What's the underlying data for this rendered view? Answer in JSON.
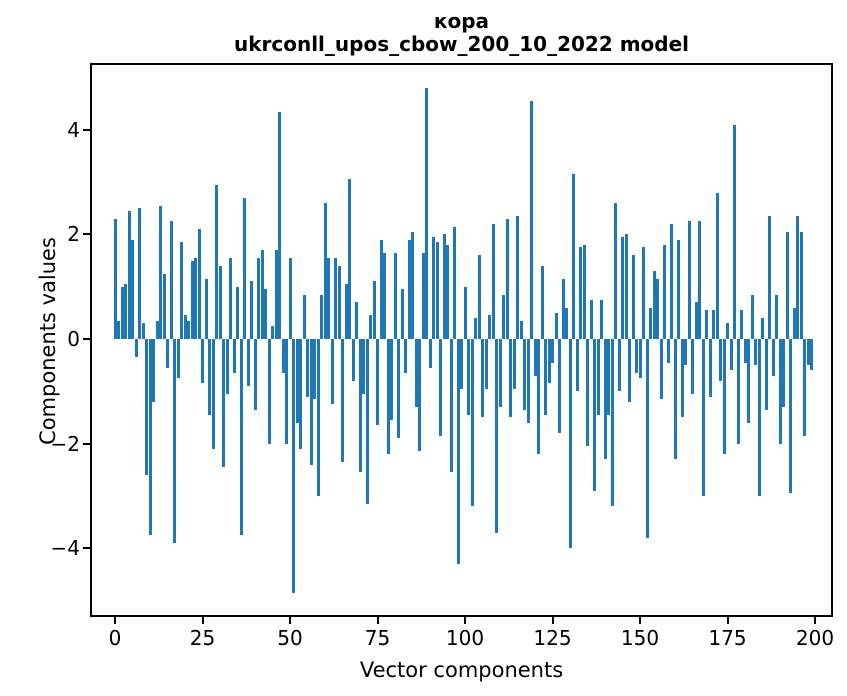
{
  "figure": {
    "title_line1": "кора",
    "title_line2": "ukrconll_upos_cbow_200_10_2022 model",
    "xlabel": "Vector components",
    "ylabel": "Components values"
  },
  "chart_data": {
    "type": "bar",
    "title": "кора",
    "subtitle": "ukrconll_upos_cbow_200_10_2022 model",
    "xlabel": "Vector components",
    "ylabel": "Components values",
    "bar_color": "#1f77b4",
    "grid": false,
    "legend": null,
    "n_components": 200,
    "xlim": [
      -7,
      205
    ],
    "ylim": [
      -5.3,
      5.3
    ],
    "x_ticks": [
      0,
      25,
      50,
      75,
      100,
      125,
      150,
      175,
      200
    ],
    "x_tick_labels": [
      "0",
      "25",
      "50",
      "75",
      "100",
      "125",
      "150",
      "175",
      "200"
    ],
    "y_ticks": [
      -4,
      -2,
      0,
      2,
      4
    ],
    "y_tick_labels": [
      "−4",
      "−2",
      "0",
      "2",
      "4"
    ],
    "values": [
      2.3,
      0.35,
      1.0,
      1.05,
      2.45,
      1.9,
      -0.35,
      2.5,
      0.3,
      -2.6,
      -3.75,
      -1.2,
      0.35,
      2.55,
      1.25,
      -0.55,
      2.25,
      -3.9,
      -0.75,
      1.85,
      0.45,
      0.35,
      1.5,
      1.55,
      2.1,
      -0.85,
      1.15,
      -1.45,
      -2.1,
      2.95,
      1.4,
      -2.45,
      -1.05,
      1.55,
      -0.65,
      1.0,
      -3.75,
      2.7,
      -0.9,
      1.1,
      -1.35,
      1.55,
      1.7,
      0.95,
      -2.0,
      0.25,
      1.7,
      4.35,
      -0.65,
      -2.0,
      1.55,
      -4.85,
      -1.6,
      -2.1,
      0.85,
      -1.1,
      -2.4,
      -1.15,
      -3.0,
      0.85,
      2.6,
      1.55,
      -1.25,
      1.55,
      1.4,
      -2.35,
      1.05,
      3.05,
      -0.8,
      0.7,
      -2.55,
      -1.05,
      -3.15,
      0.45,
      1.1,
      -1.65,
      1.9,
      1.65,
      -2.2,
      -1.55,
      1.65,
      -1.9,
      0.95,
      -0.65,
      1.9,
      2.05,
      -1.3,
      -2.15,
      1.65,
      4.8,
      -0.55,
      1.95,
      1.85,
      -1.85,
      2.0,
      1.8,
      -2.55,
      2.15,
      -4.3,
      -0.95,
      1.0,
      -1.45,
      -3.2,
      0.4,
      1.6,
      -1.5,
      -0.95,
      0.45,
      2.2,
      -3.7,
      -1.3,
      0.85,
      2.3,
      -1.5,
      -0.95,
      2.35,
      0.35,
      -1.35,
      -1.6,
      4.55,
      -0.7,
      -2.2,
      1.4,
      -1.45,
      -0.85,
      -0.45,
      0.5,
      -1.8,
      1.15,
      0.6,
      -4.0,
      3.15,
      -1.0,
      1.75,
      1.8,
      -2.05,
      0.75,
      -2.9,
      -1.45,
      0.75,
      -2.3,
      -1.45,
      -3.2,
      2.6,
      -1.0,
      1.95,
      2.0,
      -1.2,
      1.6,
      -0.65,
      -0.75,
      1.75,
      -3.8,
      0.6,
      1.3,
      1.15,
      -1.15,
      1.8,
      -0.45,
      2.2,
      -2.3,
      1.9,
      -1.5,
      -0.5,
      2.25,
      -1.05,
      0.7,
      2.25,
      -3.0,
      0.55,
      -1.1,
      0.55,
      2.8,
      -0.8,
      -2.2,
      0.3,
      -0.6,
      4.1,
      -2.0,
      0.55,
      -0.45,
      -1.6,
      0.85,
      -0.5,
      -3.0,
      0.4,
      -1.35,
      2.35,
      -0.7,
      0.85,
      -2.0,
      -1.3,
      2.05,
      -2.95,
      0.6,
      2.35,
      2.05,
      -1.85,
      -0.5,
      -0.6
    ]
  }
}
